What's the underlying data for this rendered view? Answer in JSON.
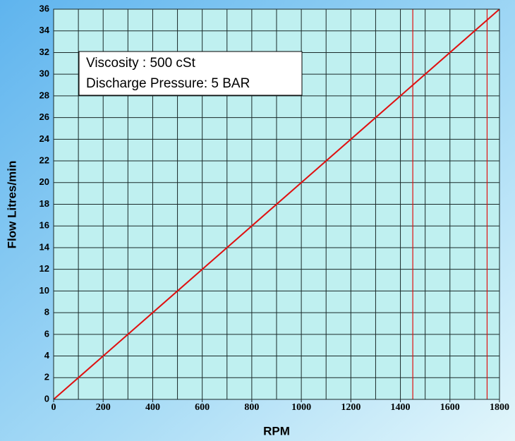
{
  "chart_data": {
    "type": "line",
    "x_label": "RPM",
    "y_label": "Flow Litres/min",
    "annotations": [
      "Viscosity : 500 cSt",
      "Discharge Pressure: 5 BAR"
    ],
    "x": [
      0,
      1800
    ],
    "series": [
      {
        "name": "Flow",
        "color": "#e01010",
        "values": [
          0,
          36
        ]
      }
    ],
    "xlim": [
      0,
      1800
    ],
    "ylim": [
      0,
      36
    ],
    "xticks": [
      0,
      200,
      400,
      600,
      800,
      1000,
      1200,
      1400,
      1600,
      1800
    ],
    "yticks": [
      0,
      2,
      4,
      6,
      8,
      10,
      12,
      14,
      16,
      18,
      20,
      22,
      24,
      26,
      28,
      30,
      32,
      34,
      36
    ],
    "xgrid": [
      0,
      100,
      200,
      300,
      400,
      500,
      600,
      700,
      800,
      900,
      1000,
      1100,
      1200,
      1300,
      1400,
      1500,
      1600,
      1700,
      1800
    ],
    "vlines": [
      1450,
      1750
    ],
    "vline_color": "#e01010",
    "grid": true
  }
}
